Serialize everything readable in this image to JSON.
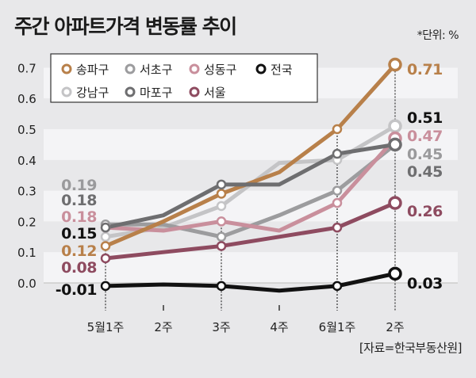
{
  "title": "주간 아파트가격 변동률 추이",
  "unit": "*단위: %",
  "source": "[자료=한국부동산원]",
  "chart_data": {
    "type": "line",
    "title": "주간 아파트가격 변동률 추이",
    "categories": [
      "5월1주",
      "2주",
      "3주",
      "4주",
      "6월1주",
      "2주"
    ],
    "yticks": [
      "0.0",
      "0.1",
      "0.2",
      "0.3",
      "0.4",
      "0.5",
      "0.6",
      "0.7"
    ],
    "ylim": [
      -0.03,
      0.75
    ],
    "legend_position": "top-left",
    "series": [
      {
        "name": "송파구",
        "color": "#b8804a",
        "label_color": "#b8804a",
        "values": [
          0.12,
          0.2,
          0.29,
          0.36,
          0.5,
          0.71
        ],
        "first_label": "0.12",
        "last_label": "0.71"
      },
      {
        "name": "서초구",
        "color": "#9c9c9e",
        "label_color": "#9a9a9c",
        "values": [
          0.19,
          0.19,
          0.15,
          0.22,
          0.3,
          0.45
        ],
        "first_label": "0.19",
        "last_label": "0.45"
      },
      {
        "name": "성동구",
        "color": "#c98f9c",
        "label_color": "#c98f9c",
        "values": [
          0.18,
          0.17,
          0.2,
          0.17,
          0.26,
          0.47
        ],
        "first_label": "0.18",
        "last_label": "0.47"
      },
      {
        "name": "전국",
        "color": "#111111",
        "label_color": "#111111",
        "values": [
          -0.01,
          -0.005,
          -0.01,
          -0.025,
          -0.01,
          0.03
        ],
        "first_label": "-0.01",
        "last_label": "0.03"
      },
      {
        "name": "강남구",
        "color": "#c4c4c6",
        "label_color": "#111111",
        "values": [
          0.15,
          0.18,
          0.25,
          0.39,
          0.4,
          0.51
        ],
        "first_label": "0.15",
        "last_label": "0.51"
      },
      {
        "name": "마포구",
        "color": "#6e6e70",
        "label_color": "#6e6e70",
        "values": [
          0.18,
          0.22,
          0.32,
          0.32,
          0.42,
          0.45
        ],
        "first_label": "0.18",
        "last_label": "0.45"
      },
      {
        "name": "서울",
        "color": "#8e4b60",
        "label_color": "#8e4b60",
        "values": [
          0.08,
          0.1,
          0.12,
          0.15,
          0.18,
          0.26
        ],
        "first_label": "0.08",
        "last_label": "0.26"
      }
    ],
    "markers_at": [
      0,
      2,
      4,
      5
    ]
  }
}
